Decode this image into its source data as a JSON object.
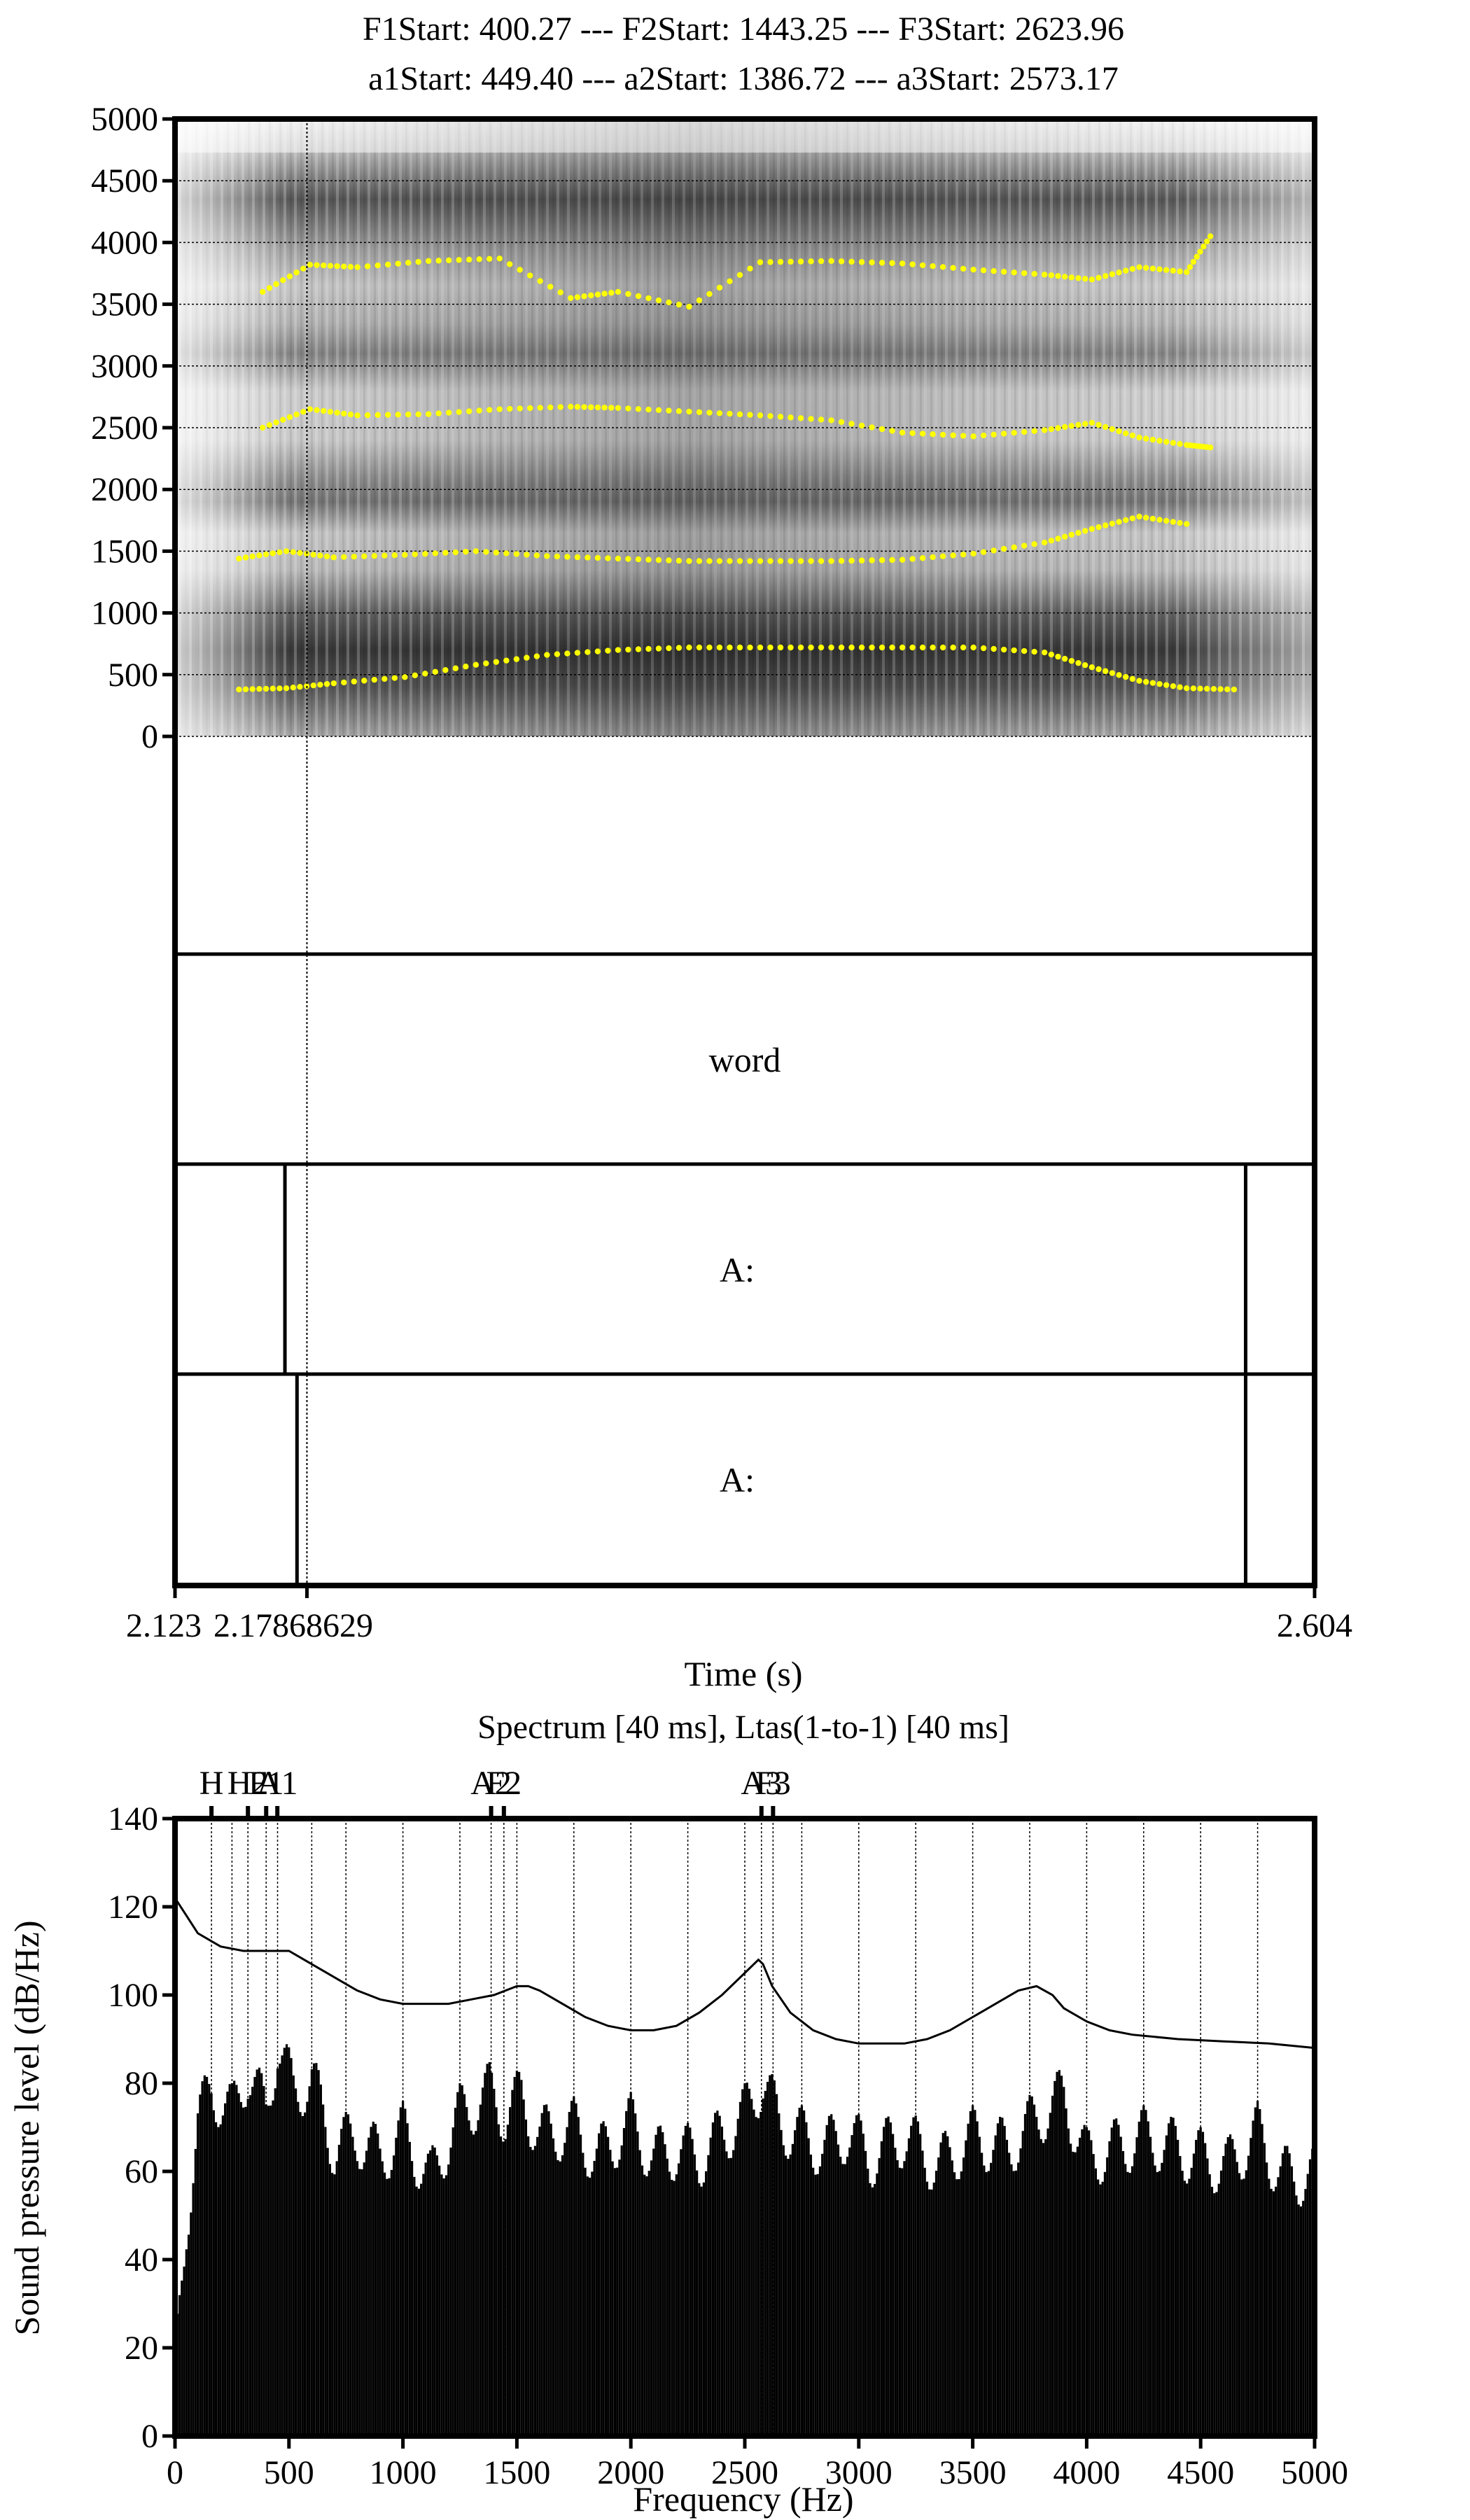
{
  "header": {
    "line1": "F1Start: 400.27 --- F2Start: 1443.25 --- F3Start: 2623.96",
    "line2": "a1Start: 449.40 --- a2Start: 1386.72 --- a3Start: 2573.17"
  },
  "colors": {
    "formant": "#ffff00",
    "ink": "#000000",
    "background": "#ffffff"
  },
  "chart_data": [
    {
      "type": "heatmap",
      "subtype": "spectrogram-with-formants",
      "ylim": [
        0,
        5000
      ],
      "y_ticks": [
        0,
        500,
        1000,
        1500,
        2000,
        2500,
        3000,
        3500,
        4000,
        4500,
        5000
      ],
      "xlim": [
        2.123,
        2.604
      ],
      "cursor_time": 2.17868629,
      "grid": true,
      "dark_bands_hz": [
        450,
        1450,
        2550,
        3700
      ],
      "formant_tracks": [
        {
          "name": "F1",
          "x": [
            2.15,
            2.17,
            2.19,
            2.22,
            2.25,
            2.28,
            2.31,
            2.34,
            2.37,
            2.4,
            2.43,
            2.46,
            2.49,
            2.51,
            2.53,
            2.55,
            2.57
          ],
          "y": [
            380,
            390,
            430,
            480,
            580,
            660,
            700,
            720,
            720,
            720,
            720,
            720,
            680,
            560,
            450,
            390,
            380
          ]
        },
        {
          "name": "F2",
          "x": [
            2.15,
            2.17,
            2.19,
            2.22,
            2.25,
            2.28,
            2.31,
            2.34,
            2.37,
            2.4,
            2.43,
            2.46,
            2.49,
            2.51,
            2.53,
            2.55
          ],
          "y": [
            1440,
            1500,
            1450,
            1470,
            1500,
            1460,
            1440,
            1420,
            1420,
            1420,
            1430,
            1480,
            1570,
            1680,
            1780,
            1720
          ]
        },
        {
          "name": "F3",
          "x": [
            2.16,
            2.18,
            2.2,
            2.23,
            2.26,
            2.29,
            2.31,
            2.34,
            2.37,
            2.4,
            2.43,
            2.46,
            2.49,
            2.51,
            2.53,
            2.55,
            2.56
          ],
          "y": [
            2500,
            2650,
            2600,
            2610,
            2650,
            2670,
            2660,
            2630,
            2600,
            2560,
            2460,
            2430,
            2480,
            2540,
            2420,
            2360,
            2340
          ]
        },
        {
          "name": "F4",
          "x": [
            2.16,
            2.18,
            2.2,
            2.23,
            2.26,
            2.29,
            2.31,
            2.34,
            2.37,
            2.4,
            2.43,
            2.46,
            2.49,
            2.51,
            2.53,
            2.55,
            2.56
          ],
          "y": [
            3600,
            3820,
            3800,
            3850,
            3870,
            3550,
            3600,
            3480,
            3840,
            3850,
            3830,
            3780,
            3740,
            3700,
            3800,
            3760,
            4050
          ]
        }
      ]
    },
    {
      "type": "line",
      "subtype": "spectrum-and-ltas",
      "title": "Spectrum [40 ms], Ltas(1-to-1) [40 ms]",
      "xlabel": "Frequency (Hz)",
      "ylabel": "Sound pressure level (dB/Hz)",
      "xlim": [
        0,
        5000
      ],
      "ylim": [
        0,
        140
      ],
      "x_ticks": [
        0,
        500,
        1000,
        1500,
        2000,
        2500,
        3000,
        3500,
        4000,
        4500,
        5000
      ],
      "y_ticks": [
        0,
        20,
        40,
        60,
        80,
        100,
        120,
        140
      ],
      "harmonic_spacing_hz": 125,
      "ltas_bars_peak": {
        "x": [
          0,
          50,
          100,
          160,
          250,
          320,
          400,
          450,
          520,
          600,
          700,
          800,
          900,
          1000,
          1120,
          1250,
          1380,
          1450,
          1520,
          1600,
          1750,
          1850,
          2000,
          2100,
          2200,
          2300,
          2420,
          2500,
          2580,
          2650,
          2750,
          2850,
          2950,
          3050,
          3200,
          3350,
          3500,
          3650,
          3800,
          3900,
          4000,
          4120,
          4250,
          4400,
          4500,
          4620,
          4750,
          4850,
          5000
        ],
        "y": [
          22,
          55,
          78,
          86,
          80,
          90,
          80,
          96,
          85,
          88,
          72,
          75,
          70,
          76,
          65,
          80,
          85,
          80,
          84,
          75,
          77,
          70,
          78,
          70,
          72,
          70,
          76,
          80,
          88,
          78,
          75,
          72,
          76,
          70,
          75,
          68,
          75,
          72,
          80,
          84,
          70,
          72,
          75,
          72,
          70,
          68,
          76,
          66,
          66
        ]
      },
      "spectrum_envelope": {
        "x": [
          0,
          50,
          100,
          200,
          300,
          400,
          500,
          600,
          700,
          800,
          900,
          1000,
          1100,
          1200,
          1300,
          1400,
          1500,
          1550,
          1600,
          1700,
          1800,
          1900,
          2000,
          2100,
          2200,
          2300,
          2400,
          2500,
          2560,
          2580,
          2620,
          2700,
          2800,
          2900,
          3000,
          3100,
          3200,
          3300,
          3400,
          3500,
          3600,
          3700,
          3780,
          3850,
          3900,
          4000,
          4100,
          4200,
          4400,
          4600,
          4800,
          5000
        ],
        "y": [
          122,
          118,
          114,
          111,
          110,
          110,
          110,
          107,
          104,
          101,
          99,
          98,
          98,
          98,
          99,
          100,
          102,
          102,
          101,
          98,
          95,
          93,
          92,
          92,
          93,
          96,
          100,
          105,
          108,
          107,
          102,
          96,
          92,
          90,
          89,
          89,
          89,
          90,
          92,
          95,
          98,
          101,
          102,
          100,
          97,
          94,
          92,
          91,
          90,
          89.5,
          89,
          88
        ]
      },
      "markers": [
        {
          "label": "H",
          "x": 160
        },
        {
          "label": "H2",
          "x": 320
        },
        {
          "label": "F1",
          "x": 400
        },
        {
          "label": "A1",
          "x": 449
        },
        {
          "label": "A2",
          "x": 1387
        },
        {
          "label": "F2",
          "x": 1443
        },
        {
          "label": "A3",
          "x": 2573
        },
        {
          "label": "F3",
          "x": 2624
        }
      ],
      "dotted_guides_hz": [
        160,
        250,
        320,
        400,
        450,
        600,
        750,
        1000,
        1250,
        1387,
        1443,
        1500,
        1750,
        2000,
        2250,
        2500,
        2573,
        2624,
        2750,
        3000,
        3250,
        3500,
        3750,
        4000,
        4250,
        4500,
        4750
      ]
    }
  ],
  "spectrogram": {
    "y_tick_labels": [
      "0",
      "500",
      "1000",
      "1500",
      "2000",
      "2500",
      "3000",
      "3500",
      "4000",
      "4500",
      "5000"
    ]
  },
  "tiers": [
    {
      "label": "word"
    },
    {
      "label": "A:",
      "boundaries": [
        2.1694,
        2.5749
      ]
    },
    {
      "label": "A:",
      "boundaries": [
        2.1745,
        2.5749
      ]
    }
  ],
  "time_axis": {
    "xlabel": "Time (s)",
    "start_label": "2.123",
    "cursor_label": "2.17868629",
    "end_label": "2.604"
  },
  "spectrum_labels": {
    "x_tick_labels": [
      "0",
      "500",
      "1000",
      "1500",
      "2000",
      "2500",
      "3000",
      "3500",
      "4000",
      "4500",
      "5000"
    ],
    "y_tick_labels": [
      "0",
      "20",
      "40",
      "60",
      "80",
      "100",
      "120",
      "140"
    ]
  }
}
